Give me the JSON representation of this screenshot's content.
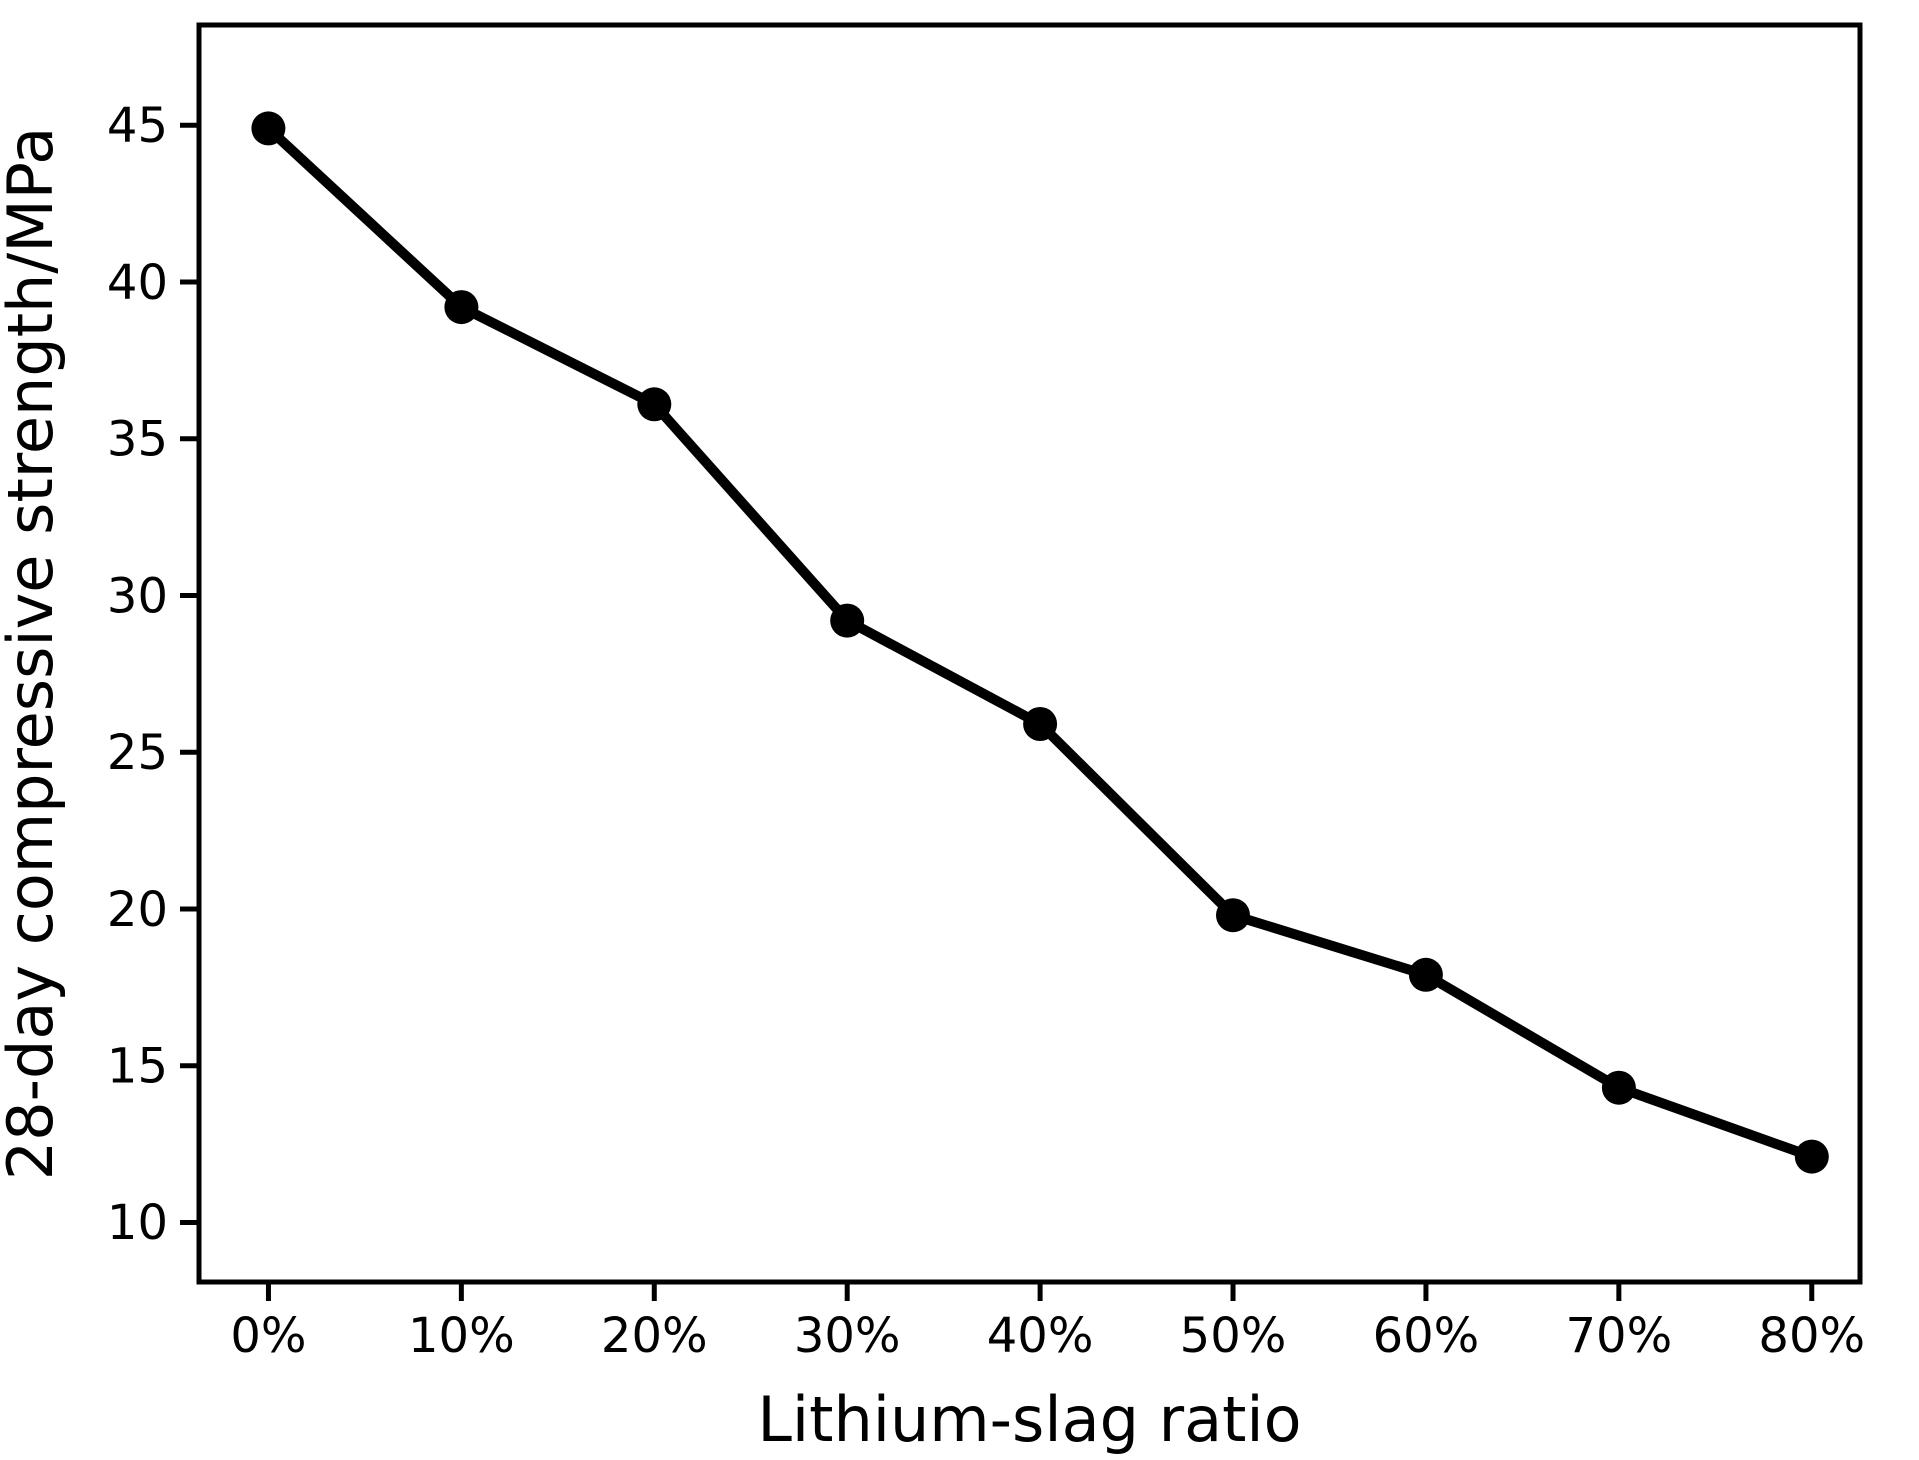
{
  "page": {
    "background_color": "#ffffff",
    "foreground_color": "#000000"
  },
  "chart_data": {
    "type": "line",
    "title": "",
    "xlabel": "Lithium-slag ratio",
    "ylabel": "28-day compressive strength/MPa",
    "categories": [
      "0%",
      "10%",
      "20%",
      "30%",
      "40%",
      "50%",
      "60%",
      "70%",
      "80%"
    ],
    "x_numeric": [
      0,
      10,
      20,
      30,
      40,
      50,
      60,
      70,
      80
    ],
    "series": [
      {
        "name": "28-day compressive strength",
        "values": [
          44.9,
          39.2,
          36.1,
          29.2,
          25.9,
          19.8,
          17.9,
          14.3,
          12.1
        ]
      }
    ],
    "yticks": [
      10,
      15,
      20,
      25,
      30,
      35,
      40,
      45
    ],
    "xlim": [
      -3.6,
      82.5
    ],
    "ylim": [
      8.1,
      48.2
    ],
    "grid": false,
    "legend_position": "none",
    "line_color": "#000000",
    "marker_style": "filled-circle",
    "axis_color": "#000000",
    "background_color": "#ffffff"
  }
}
